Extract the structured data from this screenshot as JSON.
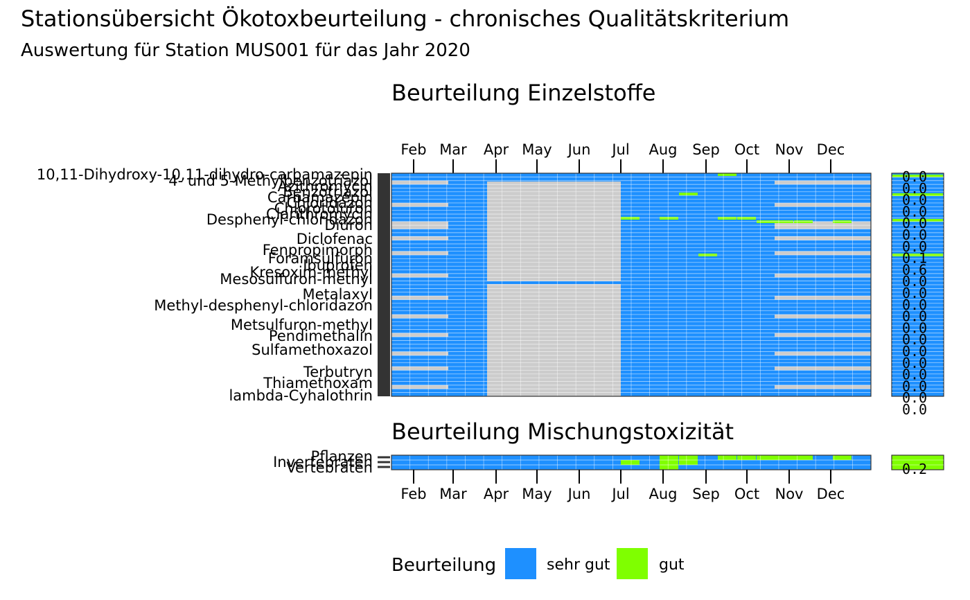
{
  "title": "Stationsübersicht Ökotoxbeurteilung - chronisches Qualitätskriterium",
  "subtitle": "Auswertung für Station MUS001 für das Jahr 2020",
  "colors": {
    "sehr_gut": "#1E90FF",
    "gut": "#7FFF00",
    "missing": "#CCCCCC",
    "border": "#333333"
  },
  "chart_data": [
    {
      "type": "heatmap",
      "title": "Beurteilung Einzelstoffe",
      "months": [
        "Feb",
        "Mar",
        "Apr",
        "May",
        "Jun",
        "Jul",
        "Aug",
        "Sep",
        "Oct",
        "Nov",
        "Dec"
      ],
      "rows_visible_labels": [
        "10,11-Dihydroxy-10,11-dihydro-carbamazepin",
        "4- und 5-Methylbenzotriazol",
        "Azithromycin",
        "Benzotriazol",
        "Carbamazepin",
        "Chloridazon",
        "Chlorotoluron",
        "Clarithromycin",
        "Desphenyl-chloridazon",
        "Diuron",
        "Diclofenac",
        "Fenpropimorph",
        "Foramsulfuron",
        "Ibuprofen",
        "Kresoxim-methyl",
        "Mesosulfuron-methyl",
        "Metalaxyl",
        "Methyl-desphenyl-chloridazon",
        "Metsulfuron-methyl",
        "Pendimethalin",
        "Sulfamethoxazol",
        "Terbutryn",
        "Thiamethoxam",
        "lambda-Cyhalothrin"
      ],
      "side_values": [
        "0.0",
        "0.0",
        "0.0",
        "0.0",
        "0.0",
        "0.0",
        "0.0",
        "0.1",
        "0.6",
        "0.0",
        "0.0",
        "0.0",
        "0.0",
        "0.0",
        "0.0",
        "0.0",
        "0.0",
        "0.0",
        "0.0",
        "0.0",
        "0.0"
      ],
      "legend": [
        "sehr gut",
        "gut"
      ]
    },
    {
      "type": "heatmap",
      "title": "Beurteilung Mischungstoxizität",
      "months": [
        "Feb",
        "Mar",
        "Apr",
        "May",
        "Jun",
        "Jul",
        "Aug",
        "Sep",
        "Oct",
        "Nov",
        "Dec"
      ],
      "rows": [
        "Pflanzen",
        "Invertebraten",
        "Vertebraten"
      ],
      "side_values": [
        "0.2"
      ]
    }
  ],
  "legend": {
    "title": "Beurteilung",
    "items": [
      {
        "label": "sehr gut",
        "color": "#1E90FF"
      },
      {
        "label": "gut",
        "color": "#7FFF00"
      }
    ]
  }
}
